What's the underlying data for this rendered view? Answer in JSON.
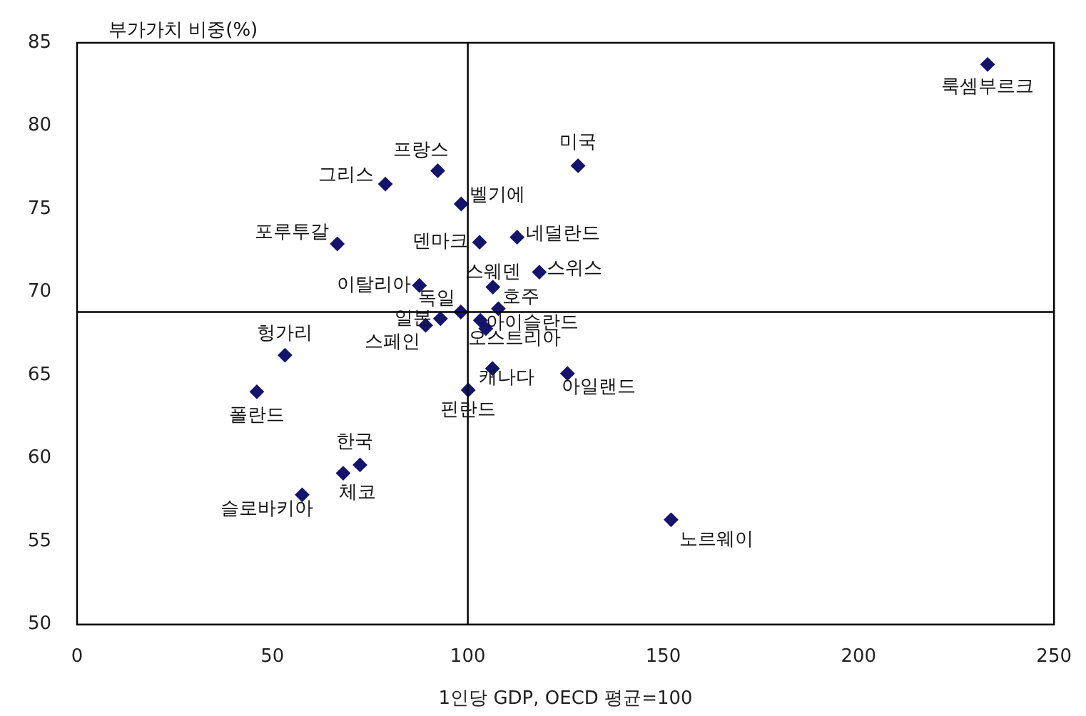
{
  "chart_data": {
    "type": "scatter",
    "xlabel": "1인당 GDP, OECD 평균=100",
    "ylabel": "부가가치 비중(%)",
    "x": [
      233,
      92.3,
      78.9,
      128.2,
      98.3,
      66.6,
      103,
      112.6,
      118.3,
      87.6,
      106.4,
      98.2,
      107.8,
      93,
      89.2,
      103.2,
      104.6,
      53.2,
      106.3,
      125.5,
      46,
      100.1,
      72.4,
      68.1,
      57.6,
      152
    ],
    "values": [
      83.7,
      77.3,
      76.5,
      77.6,
      75.3,
      72.9,
      73,
      73.3,
      71.2,
      70.4,
      70.3,
      68.8,
      69,
      68.4,
      68,
      68.3,
      67.8,
      66.2,
      65.4,
      65.1,
      64,
      64.1,
      59.6,
      59.1,
      57.8,
      56.3
    ],
    "color": "#14146e",
    "marker": "diamond",
    "xlim": [
      0,
      250
    ],
    "xticks": [
      0,
      50,
      100,
      150,
      200,
      250
    ],
    "ylim": [
      50,
      85
    ],
    "yticks": [
      50,
      55,
      60,
      65,
      70,
      75,
      80,
      85
    ],
    "ref_lines": [
      {
        "axis": "x",
        "value": 100,
        "color": "#000000"
      },
      {
        "axis": "y",
        "value": 68.8,
        "color": "#000000"
      }
    ],
    "annotations": [
      {
        "text": "룩셈부르크",
        "x": 233,
        "y": 83.7
      },
      {
        "text": "프랑스",
        "x": 92.3,
        "y": 77.3
      },
      {
        "text": "그리스",
        "x": 78.9,
        "y": 76.5
      },
      {
        "text": "미국",
        "x": 128.2,
        "y": 77.6
      },
      {
        "text": "벨기에",
        "x": 98.3,
        "y": 75.3
      },
      {
        "text": "포루투갈",
        "x": 66.6,
        "y": 72.9
      },
      {
        "text": "덴마크",
        "x": 103,
        "y": 73
      },
      {
        "text": "네덜란드",
        "x": 112.6,
        "y": 73.3
      },
      {
        "text": "스위스",
        "x": 118.3,
        "y": 71.2
      },
      {
        "text": "이탈리아",
        "x": 87.6,
        "y": 70.4
      },
      {
        "text": "스웨덴",
        "x": 106.4,
        "y": 70.3
      },
      {
        "text": "독일",
        "x": 98.2,
        "y": 68.8
      },
      {
        "text": "호주",
        "x": 107.8,
        "y": 69
      },
      {
        "text": "일본",
        "x": 93,
        "y": 68.4
      },
      {
        "text": "스페인",
        "x": 89.2,
        "y": 68
      },
      {
        "text": "아이슬란드",
        "x": 103.2,
        "y": 68.3
      },
      {
        "text": "오스트리아",
        "x": 104.6,
        "y": 67.8
      },
      {
        "text": "헝가리",
        "x": 53.2,
        "y": 66.2
      },
      {
        "text": "캐나다",
        "x": 106.3,
        "y": 65.4
      },
      {
        "text": "아일랜드",
        "x": 125.5,
        "y": 65.1
      },
      {
        "text": "폴란드",
        "x": 46,
        "y": 64
      },
      {
        "text": "핀란드",
        "x": 100.1,
        "y": 64.1
      },
      {
        "text": "한국",
        "x": 72.4,
        "y": 59.6
      },
      {
        "text": "체코",
        "x": 68.1,
        "y": 59.1
      },
      {
        "text": "슬로바키아",
        "x": 57.6,
        "y": 57.8
      },
      {
        "text": "노르웨이",
        "x": 152,
        "y": 56.3
      }
    ],
    "grid": false,
    "legend": false
  }
}
